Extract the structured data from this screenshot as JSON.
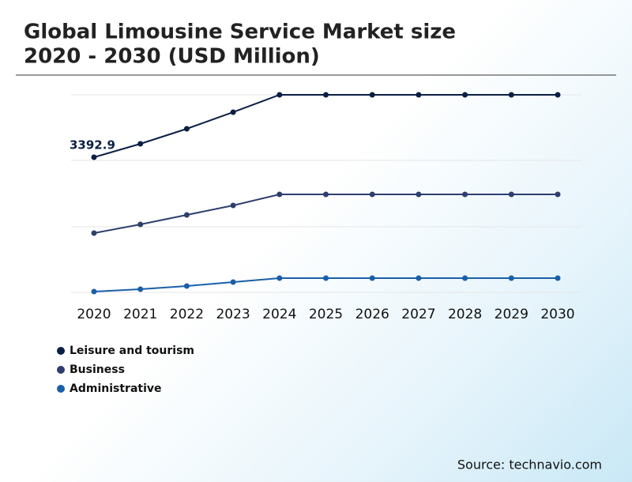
{
  "chart_data": {
    "type": "line",
    "title": [
      "Global Limousine Service Market size",
      "2020 - 2030 (USD Million)"
    ],
    "x": [
      2020,
      2021,
      2022,
      2023,
      2024,
      2025,
      2026,
      2027,
      2028,
      2029,
      2030
    ],
    "xlim": [
      2020,
      2030
    ],
    "ylim": [
      0,
      4960
    ],
    "series": [
      {
        "name": "Leisure and tourism",
        "color": "#0b1f44",
        "values": [
          3392.9,
          3730,
          4107,
          4524,
          4960,
          4960,
          4960,
          4960,
          4960,
          4960,
          4960
        ]
      },
      {
        "name": "Business",
        "color": "#2e3f6e",
        "values": [
          1488,
          1706,
          1944,
          2183,
          2460,
          2460,
          2460,
          2460,
          2460,
          2460,
          2460
        ]
      },
      {
        "name": "Administrative",
        "color": "#1a5fa8",
        "values": [
          20,
          79,
          159,
          258,
          357,
          357,
          357,
          357,
          357,
          357,
          357
        ]
      }
    ],
    "source": "Source: technavio.com"
  }
}
